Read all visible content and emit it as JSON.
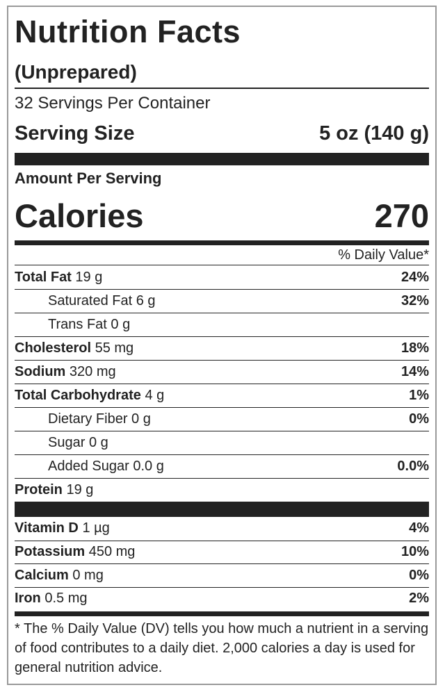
{
  "title": "Nutrition Facts",
  "subtitle": "(Unprepared)",
  "servings": "32 Servings Per Container",
  "serving_size": {
    "label": "Serving Size",
    "value": "5 oz (140 g)"
  },
  "amount_per_serving": "Amount Per Serving",
  "calories": {
    "label": "Calories",
    "value": "270"
  },
  "daily_value_header": "% Daily Value*",
  "nutrients": [
    {
      "name": "Total Fat",
      "amount": "19 g",
      "dv": "24%",
      "sub": [
        {
          "name": "Saturated Fat",
          "amount": "6 g",
          "dv": "32%"
        },
        {
          "name": "Trans Fat",
          "amount": "0 g"
        }
      ]
    },
    {
      "name": "Cholesterol",
      "amount": "55 mg",
      "dv": "18%"
    },
    {
      "name": "Sodium",
      "amount": "320 mg",
      "dv": "14%"
    },
    {
      "name": "Total Carbohydrate",
      "amount": "4 g",
      "dv": "1%",
      "sub": [
        {
          "name": "Dietary Fiber",
          "amount": "0 g",
          "dv": "0%"
        },
        {
          "name": "Sugar",
          "amount": "0 g"
        },
        {
          "name": "Added Sugar",
          "amount": "0.0 g",
          "dv": "0.0%"
        }
      ]
    },
    {
      "name": "Protein",
      "amount": "19 g"
    }
  ],
  "vitamins": [
    {
      "name": "Vitamin D",
      "amount": "1 µg",
      "dv": "4%"
    },
    {
      "name": "Potassium",
      "amount": "450 mg",
      "dv": "10%"
    },
    {
      "name": "Calcium",
      "amount": "0 mg",
      "dv": "0%"
    },
    {
      "name": "Iron",
      "amount": "0.5 mg",
      "dv": "2%"
    }
  ],
  "footnote": "* The % Daily Value (DV) tells you how much a nutrient in a serving of food contributes to a daily diet. 2,000 calories a day is used for general nutrition advice."
}
